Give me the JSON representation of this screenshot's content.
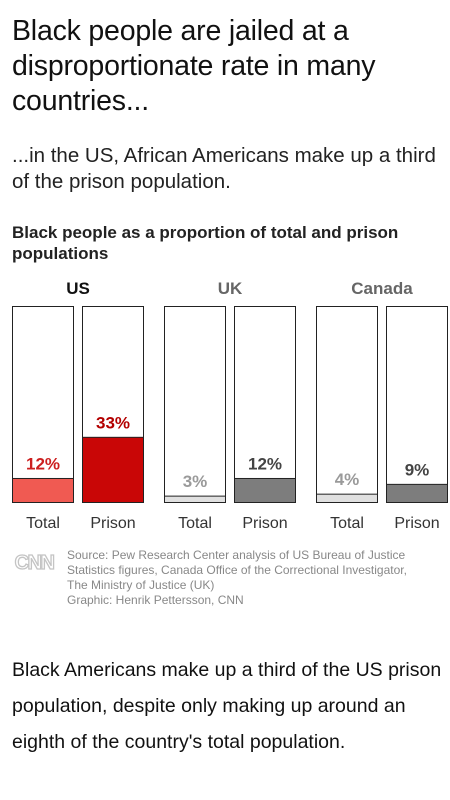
{
  "graphic": {
    "title": "Black people are jailed at a disproportionate rate in many countries...",
    "subtitle": "...in the US, African Americans make up a third of the prison population.",
    "source_lines": [
      "Source: Pew Research Center analysis of US Bureau of Justice",
      "Statistics figures, Canada Office of the Correctional Investigator,",
      "The Ministry of Justice (UK)",
      "Graphic: Henrik Pettersson, CNN"
    ],
    "logo_text": "CNN"
  },
  "chart_data": {
    "type": "bar",
    "title": "Black people as a proportion of total and prison populations",
    "ylim": [
      0,
      100
    ],
    "grid": false,
    "legend": "none",
    "value_suffix": "%",
    "groups": [
      {
        "name": "US",
        "bars": [
          {
            "label": "Total",
            "value": 12,
            "color": "#f05a52",
            "label_color": "#cc1f1f"
          },
          {
            "label": "Prison",
            "value": 33,
            "color": "#c90606",
            "label_color": "#b30000"
          }
        ]
      },
      {
        "name": "UK",
        "bars": [
          {
            "label": "Total",
            "value": 3,
            "color": "#e0e0e0",
            "label_color": "#9a9a9a"
          },
          {
            "label": "Prison",
            "value": 12,
            "color": "#7d7d7d",
            "label_color": "#444444"
          }
        ]
      },
      {
        "name": "Canada",
        "bars": [
          {
            "label": "Total",
            "value": 4,
            "color": "#e0e0e0",
            "label_color": "#9a9a9a"
          },
          {
            "label": "Prison",
            "value": 9,
            "color": "#7d7d7d",
            "label_color": "#444444"
          }
        ]
      }
    ]
  },
  "article": {
    "text": "Black Americans make up a third of the US prison population, despite only making up around an eighth of the country's total population."
  }
}
